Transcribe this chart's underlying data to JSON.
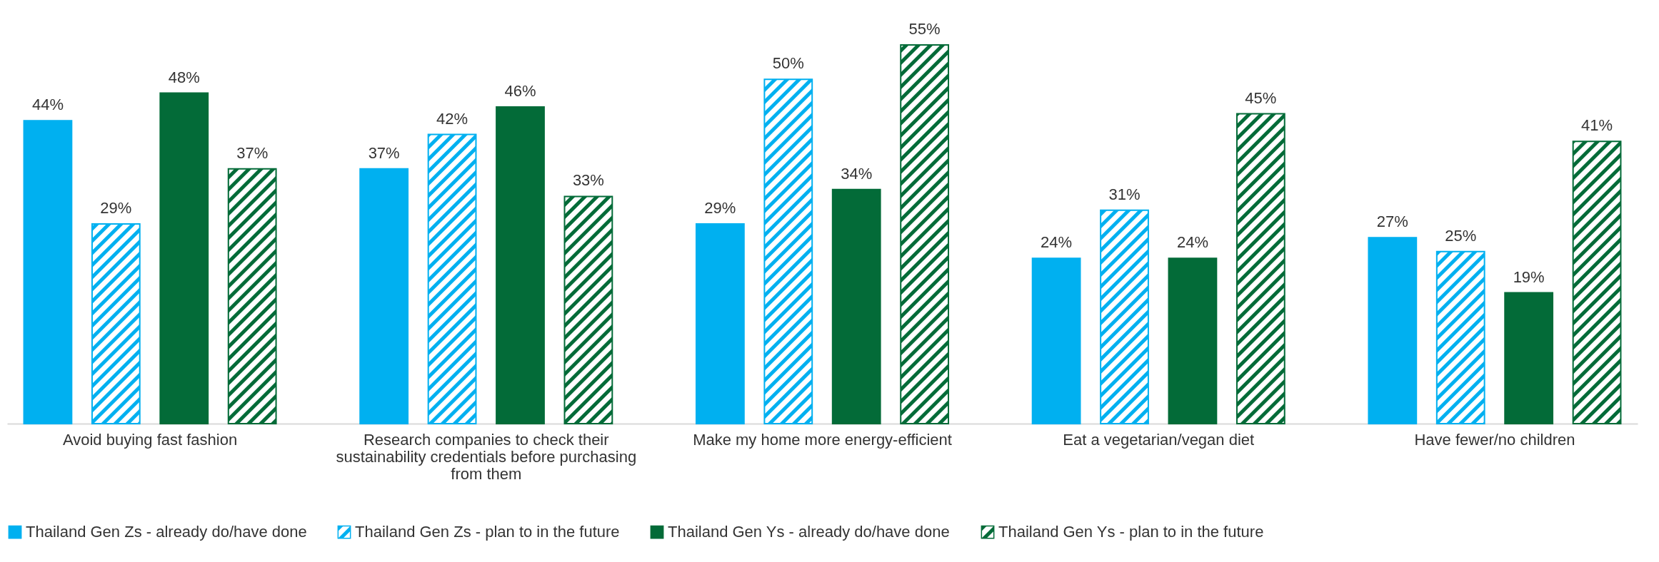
{
  "chart_data": {
    "type": "bar",
    "categories": [
      "Avoid buying fast fashion",
      "Research companies to check their sustainability credentials before purchasing from them",
      "Make my home more energy-efficient",
      "Eat a vegetarian/vegan diet",
      "Have fewer/no children"
    ],
    "series": [
      {
        "name": "Thailand Gen Zs - already do/have done",
        "color": "#00b0f0",
        "values": [
          44,
          37,
          29,
          24,
          27
        ],
        "value_labels": [
          "44%",
          "37%",
          "29%",
          "24%",
          "27%"
        ]
      },
      {
        "name": "Thailand Gen Zs - plan to in the future",
        "color": "#00b0f0",
        "values": [
          29,
          42,
          50,
          31,
          25
        ],
        "value_labels": [
          "29%",
          "42%",
          "50%",
          "31%",
          "25%"
        ]
      },
      {
        "name": "Thailand Gen Ys - already do/have done",
        "color": "#036b38",
        "values": [
          48,
          46,
          34,
          24,
          19
        ],
        "value_labels": [
          "48%",
          "46%",
          "34%",
          "24%",
          "19%"
        ]
      },
      {
        "name": "Thailand Gen Ys - plan to in the future",
        "color": "#036b38",
        "values": [
          37,
          33,
          55,
          45,
          41
        ],
        "value_labels": [
          "37%",
          "33%",
          "55%",
          "45%",
          "41%"
        ]
      }
    ],
    "legend": "bottom"
  }
}
